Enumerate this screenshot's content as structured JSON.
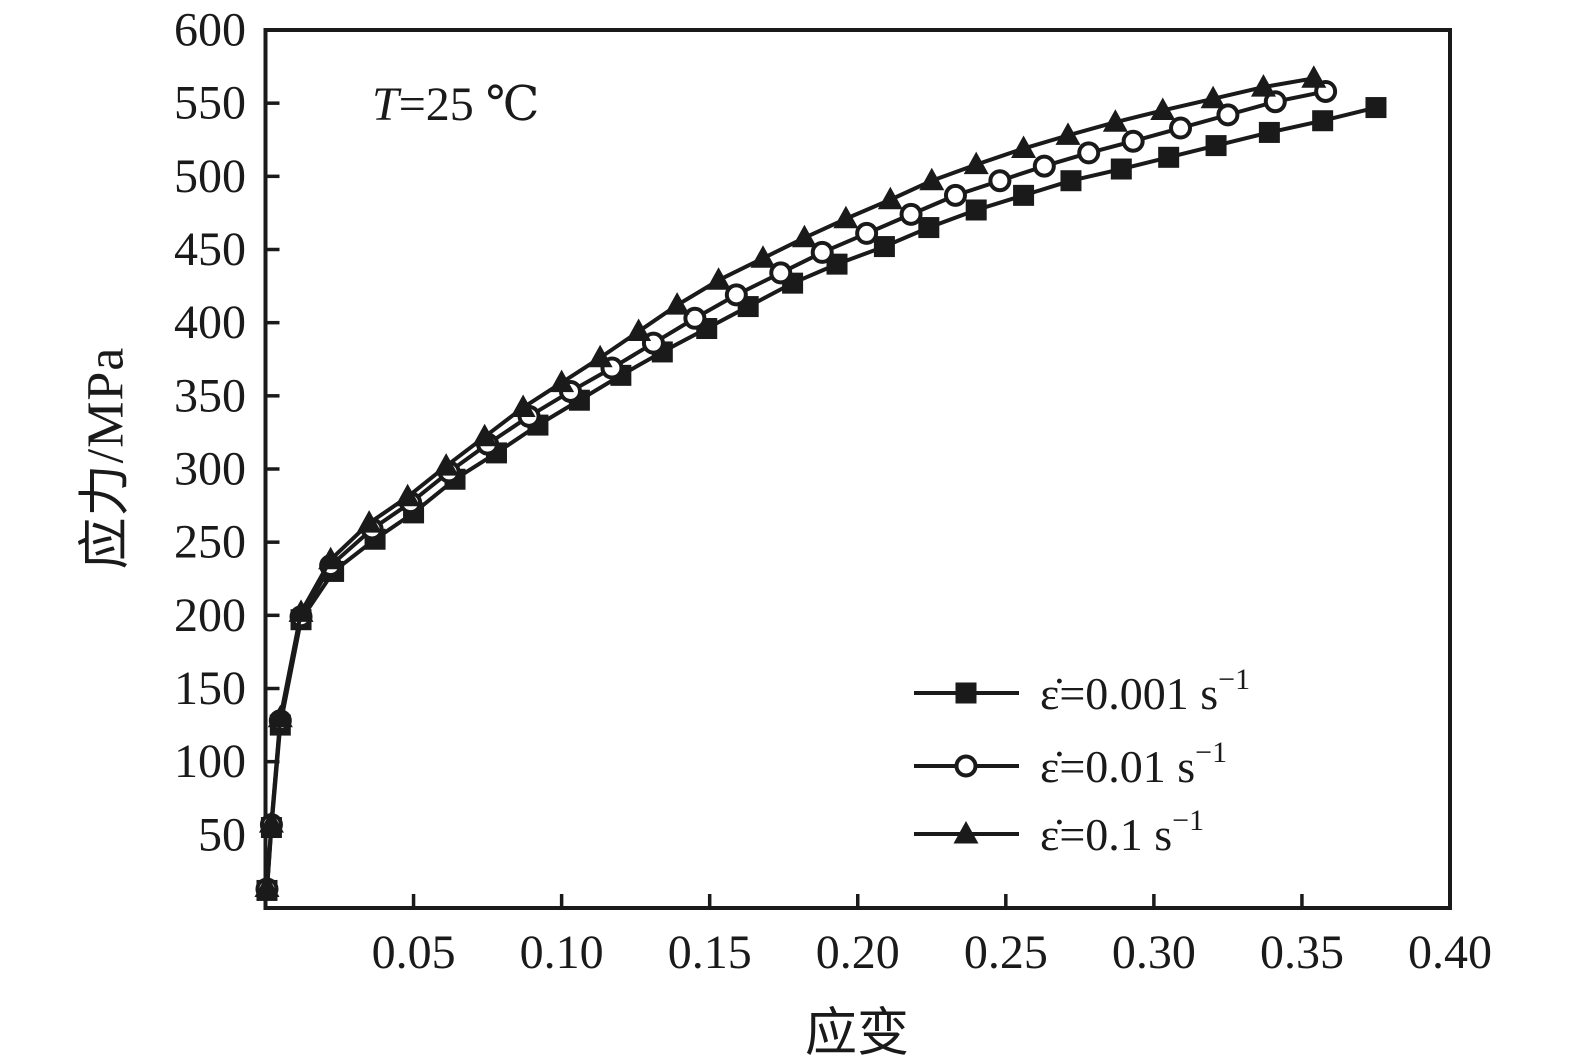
{
  "colors": {
    "ink": "#1a1a1a",
    "background": "#ffffff"
  },
  "annotation": {
    "variable": "T",
    "rest": "=25 ℃"
  },
  "chart_data": {
    "type": "line",
    "title": "",
    "annotation": "T=25 ℃",
    "xlabel": "应变",
    "ylabel": "应力/MPa",
    "xlim": [
      0,
      0.4
    ],
    "ylim": [
      0,
      600
    ],
    "x_ticks": [
      0.05,
      0.1,
      0.15,
      0.2,
      0.25,
      0.3,
      0.35,
      0.4
    ],
    "x_tick_labels": [
      "0.05",
      "0.10",
      "0.15",
      "0.20",
      "0.25",
      "0.30",
      "0.35",
      "0.40"
    ],
    "y_ticks": [
      50,
      100,
      150,
      200,
      250,
      300,
      350,
      400,
      450,
      500,
      550,
      600
    ],
    "y_tick_labels": [
      "50",
      "100",
      "150",
      "200",
      "250",
      "300",
      "350",
      "400",
      "450",
      "500",
      "550",
      "600"
    ],
    "grid": false,
    "legend_position": "lower-right",
    "legend": [
      {
        "marker": "filled-square",
        "label_base": "ε̇=0.001 s",
        "label_sup": "−1"
      },
      {
        "marker": "open-circle",
        "label_base": "ε̇=0.01 s",
        "label_sup": "−1"
      },
      {
        "marker": "filled-triangle",
        "label_base": "ε̇=0.1 s",
        "label_sup": "−1"
      }
    ],
    "series": [
      {
        "name": "ε̇=0.001 s⁻¹",
        "strain_rate": "0.001",
        "marker": "filled-square",
        "x": [
          0.0005,
          0.002,
          0.005,
          0.012,
          0.023,
          0.037,
          0.05,
          0.064,
          0.078,
          0.092,
          0.106,
          0.12,
          0.134,
          0.149,
          0.163,
          0.178,
          0.193,
          0.209,
          0.224,
          0.24,
          0.256,
          0.272,
          0.289,
          0.305,
          0.321,
          0.339,
          0.357,
          0.375
        ],
        "y": [
          12,
          55,
          125,
          197,
          230,
          252,
          270,
          293,
          311,
          330,
          347,
          364,
          380,
          396,
          411,
          427,
          440,
          452,
          465,
          477,
          487,
          497,
          505,
          513,
          521,
          530,
          538,
          547
        ]
      },
      {
        "name": "ε̇=0.01 s⁻¹",
        "strain_rate": "0.01",
        "marker": "open-circle",
        "x": [
          0.0005,
          0.002,
          0.005,
          0.012,
          0.022,
          0.036,
          0.049,
          0.062,
          0.075,
          0.089,
          0.103,
          0.117,
          0.131,
          0.145,
          0.159,
          0.174,
          0.188,
          0.203,
          0.218,
          0.233,
          0.248,
          0.263,
          0.278,
          0.293,
          0.309,
          0.325,
          0.341,
          0.358
        ],
        "y": [
          13,
          57,
          128,
          199,
          234,
          259,
          277,
          298,
          317,
          336,
          353,
          369,
          386,
          403,
          419,
          434,
          448,
          461,
          474,
          487,
          497,
          507,
          516,
          524,
          533,
          542,
          551,
          558
        ]
      },
      {
        "name": "ε̇=0.1 s⁻¹",
        "strain_rate": "0.1",
        "marker": "filled-triangle",
        "x": [
          0.0005,
          0.002,
          0.005,
          0.012,
          0.022,
          0.035,
          0.048,
          0.061,
          0.074,
          0.087,
          0.1,
          0.113,
          0.126,
          0.139,
          0.153,
          0.168,
          0.182,
          0.196,
          0.211,
          0.225,
          0.24,
          0.256,
          0.271,
          0.287,
          0.303,
          0.32,
          0.337,
          0.354
        ],
        "y": [
          14,
          58,
          130,
          202,
          238,
          263,
          281,
          302,
          322,
          342,
          359,
          376,
          394,
          412,
          429,
          444,
          458,
          471,
          484,
          497,
          508,
          519,
          528,
          537,
          545,
          553,
          561,
          567
        ]
      }
    ]
  }
}
